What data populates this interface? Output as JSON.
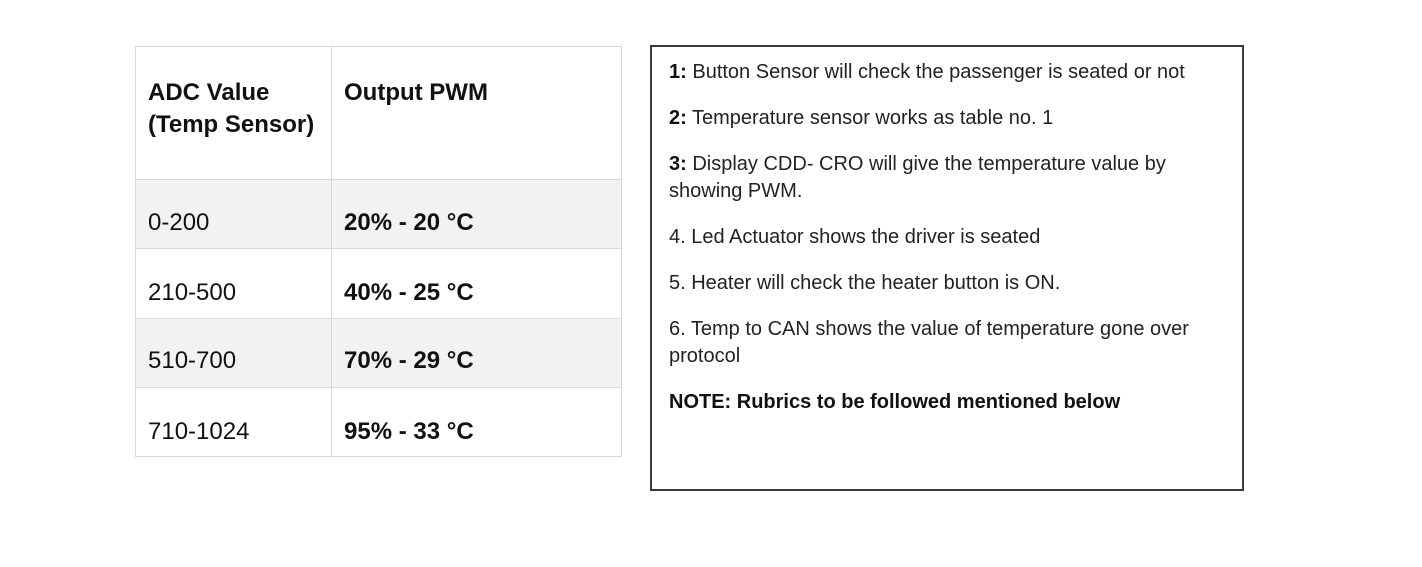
{
  "table": {
    "headers": [
      "ADC Value (Temp Sensor)",
      "Output PWM"
    ],
    "rows": [
      {
        "adc": "0-200",
        "pwm": "20% - 20 °C"
      },
      {
        "adc": "210-500",
        "pwm": "40% - 25 °C"
      },
      {
        "adc": "510-700",
        "pwm": "70% - 29 °C"
      },
      {
        "adc": "710-1024",
        "pwm": "95% - 33 °C"
      }
    ]
  },
  "notes": {
    "n1_prefix": "1:",
    "n1_text": " Button Sensor will check the passenger is seated or not",
    "n2_prefix": "2:",
    "n2_text": " Temperature sensor works as table no. 1",
    "n3_prefix": "3:",
    "n3_text": " Display CDD- CRO will give the temperature value by showing PWM.",
    "n4_text": "4. Led Actuator shows the driver is seated",
    "n5_text": "5. Heater will check the heater button is ON.",
    "n6_text": "6. Temp to CAN shows the value of temperature gone over protocol",
    "note_text": "NOTE: Rubrics to be followed mentioned below"
  }
}
